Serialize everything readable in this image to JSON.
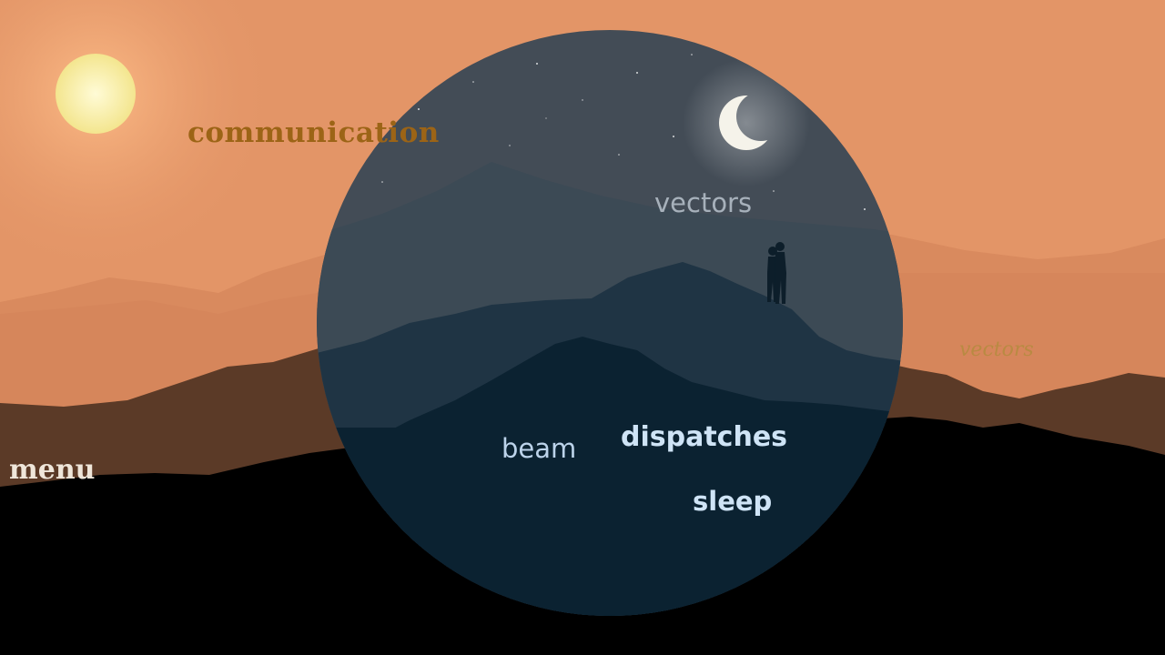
{
  "scene": {
    "colors": {
      "sky": "#e39567",
      "sun": "#f6ef9a",
      "far_hills": "#d9895f",
      "mid_hills": "#5e3b27",
      "foreground": "#000000",
      "night_lens": "#1b3548",
      "moon": "#f5f3ea"
    },
    "icons": [
      "sun-icon",
      "moon-icon",
      "stars",
      "couple-silhouette",
      "mountain-silhouettes"
    ]
  },
  "words": {
    "communication": "communication",
    "vectors_sky": "vectors",
    "vectors_right": "vectors",
    "beam": "beam",
    "dispatches": "dispatches",
    "sleep": "sleep",
    "menu": "menu"
  }
}
